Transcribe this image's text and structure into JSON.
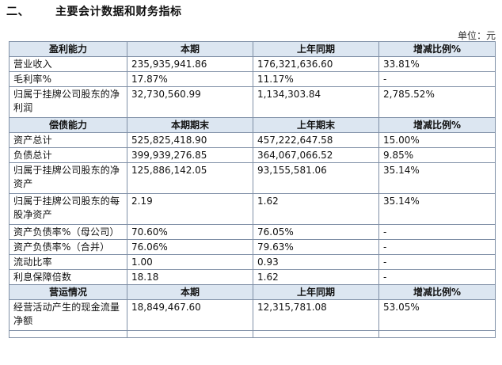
{
  "section": {
    "number": "二、",
    "title": "主要会计数据和财务指标"
  },
  "unit_label": "单位：元",
  "profitability": {
    "headers": [
      "盈利能力",
      "本期",
      "上年同期",
      "增减比例%"
    ],
    "rows": [
      [
        "营业收入",
        "235,935,941.86",
        "176,321,636.60",
        "33.81%"
      ],
      [
        "毛利率%",
        "17.87%",
        "11.17%",
        "-"
      ],
      [
        "归属于挂牌公司股东的净利润",
        "32,730,560.99",
        "1,134,303.84",
        "2,785.52%"
      ]
    ]
  },
  "solvency": {
    "headers": [
      "偿债能力",
      "本期期末",
      "上年期末",
      "增减比例%"
    ],
    "rows": [
      [
        "资产总计",
        "525,825,418.90",
        "457,222,647.58",
        "15.00%"
      ],
      [
        "负债总计",
        "399,939,276.85",
        "364,067,066.52",
        "9.85%"
      ],
      [
        "归属于挂牌公司股东的净资产",
        "125,886,142.05",
        "93,155,581.06",
        "35.14%"
      ],
      [
        "归属于挂牌公司股东的每股净资产",
        "2.19",
        "1.62",
        "35.14%"
      ],
      [
        "资产负债率%（母公司）",
        "70.60%",
        "76.05%",
        "-"
      ],
      [
        "资产负债率%（合并）",
        "76.06%",
        "79.63%",
        "-"
      ],
      [
        "流动比率",
        "1.00",
        "0.93",
        "-"
      ],
      [
        "利息保障倍数",
        "18.18",
        "1.62",
        "-"
      ]
    ]
  },
  "operations": {
    "headers": [
      "营运情况",
      "本期",
      "上年同期",
      "增减比例%"
    ],
    "rows": [
      [
        "经营活动产生的现金流量净额",
        "18,849,467.60",
        "12,315,781.08",
        "53.05%"
      ]
    ]
  }
}
